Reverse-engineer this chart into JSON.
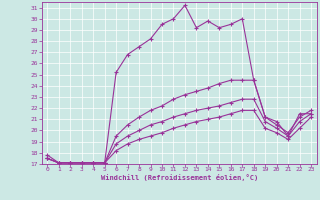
{
  "xlabel": "Windchill (Refroidissement éolien,°C)",
  "background_color": "#cce8e4",
  "line_color": "#993399",
  "xlim": [
    -0.5,
    23.5
  ],
  "ylim": [
    17,
    31.5
  ],
  "yticks": [
    17,
    18,
    19,
    20,
    21,
    22,
    23,
    24,
    25,
    26,
    27,
    28,
    29,
    30,
    31
  ],
  "xticks": [
    0,
    1,
    2,
    3,
    4,
    5,
    6,
    7,
    8,
    9,
    10,
    11,
    12,
    13,
    14,
    15,
    16,
    17,
    18,
    19,
    20,
    21,
    22,
    23
  ],
  "line1_x": [
    0,
    1,
    2,
    3,
    4,
    5,
    6,
    7,
    8,
    9,
    10,
    11,
    12,
    13,
    14,
    15,
    16,
    17,
    18,
    19,
    20,
    21,
    22,
    23
  ],
  "line1_y": [
    17.8,
    17.1,
    17.1,
    17.1,
    17.1,
    17.1,
    25.2,
    26.8,
    27.5,
    28.2,
    29.5,
    30.0,
    31.2,
    29.2,
    29.8,
    29.2,
    29.5,
    30.0,
    24.5,
    21.2,
    20.8,
    19.5,
    21.5,
    21.5
  ],
  "line2_x": [
    0,
    1,
    2,
    3,
    4,
    5,
    6,
    7,
    8,
    9,
    10,
    11,
    12,
    13,
    14,
    15,
    16,
    17,
    18,
    19,
    20,
    21,
    22,
    23
  ],
  "line2_y": [
    17.5,
    17.1,
    17.1,
    17.1,
    17.1,
    17.1,
    19.5,
    20.5,
    21.2,
    21.8,
    22.2,
    22.8,
    23.2,
    23.5,
    23.8,
    24.2,
    24.5,
    24.5,
    24.5,
    21.2,
    20.5,
    19.8,
    21.2,
    21.8
  ],
  "line3_x": [
    0,
    1,
    2,
    3,
    4,
    5,
    6,
    7,
    8,
    9,
    10,
    11,
    12,
    13,
    14,
    15,
    16,
    17,
    18,
    19,
    20,
    21,
    22,
    23
  ],
  "line3_y": [
    17.5,
    17.1,
    17.1,
    17.1,
    17.1,
    17.1,
    18.8,
    19.5,
    20.0,
    20.5,
    20.8,
    21.2,
    21.5,
    21.8,
    22.0,
    22.2,
    22.5,
    22.8,
    22.8,
    20.8,
    20.2,
    19.5,
    20.8,
    21.5
  ],
  "line4_x": [
    0,
    1,
    2,
    3,
    4,
    5,
    6,
    7,
    8,
    9,
    10,
    11,
    12,
    13,
    14,
    15,
    16,
    17,
    18,
    19,
    20,
    21,
    22,
    23
  ],
  "line4_y": [
    17.5,
    17.1,
    17.1,
    17.1,
    17.1,
    17.1,
    18.2,
    18.8,
    19.2,
    19.5,
    19.8,
    20.2,
    20.5,
    20.8,
    21.0,
    21.2,
    21.5,
    21.8,
    21.8,
    20.2,
    19.8,
    19.2,
    20.2,
    21.2
  ]
}
